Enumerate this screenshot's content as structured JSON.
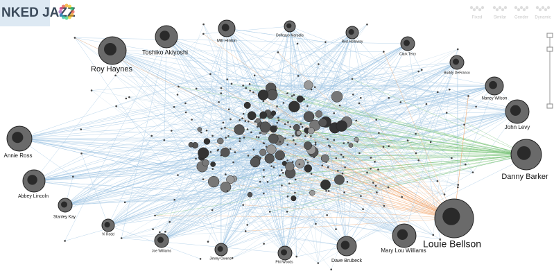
{
  "header": {
    "title": "NKED JAZZ"
  },
  "toolbar": {
    "buttons": [
      "Fixed",
      "Similar",
      "Gender",
      "Dynamic"
    ]
  },
  "nodes": [
    {
      "label": "Roy Haynes"
    },
    {
      "label": "Toshiko Akiyoshi"
    },
    {
      "label": "Milt Hinton"
    },
    {
      "label": "Delfeayo Marsalis"
    },
    {
      "label": "Red Holloway"
    },
    {
      "label": "Clark Terry"
    },
    {
      "label": "Buddy DeFranco"
    },
    {
      "label": "Nancy Wilson"
    },
    {
      "label": "John Levy"
    },
    {
      "label": "Danny Barker"
    },
    {
      "label": "Louie Bellson"
    },
    {
      "label": "Mary Lou Williams"
    },
    {
      "label": "Dave Brubeck"
    },
    {
      "label": "Phil Woods"
    },
    {
      "label": "Jimmy Owens"
    },
    {
      "label": "Joe Williams"
    },
    {
      "label": "Vi Redd"
    },
    {
      "label": "Stanley Kay"
    },
    {
      "label": "Abbey Lincoln"
    },
    {
      "label": "Annie Ross"
    }
  ]
}
